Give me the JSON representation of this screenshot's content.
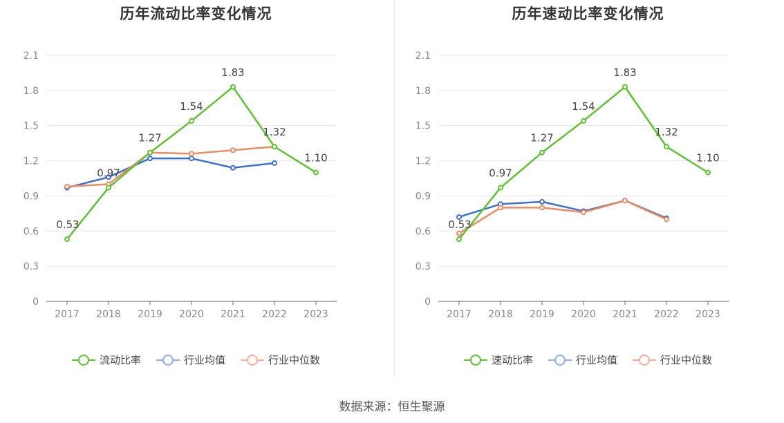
{
  "source": "数据来源：恒生聚源",
  "chart_data": [
    {
      "type": "line",
      "title": "历年流动比率变化情况",
      "categories": [
        "2017",
        "2018",
        "2019",
        "2020",
        "2021",
        "2022",
        "2023"
      ],
      "ylim": [
        0,
        2.1
      ],
      "yticks": [
        "0",
        "0.3",
        "0.6",
        "0.9",
        "1.2",
        "1.5",
        "1.8",
        "2.1"
      ],
      "grid": true,
      "legend_position": "bottom",
      "series": [
        {
          "name": "流动比率",
          "color": "#5bc42d",
          "values": [
            0.53,
            0.97,
            1.27,
            1.54,
            1.83,
            1.32,
            1.1
          ],
          "labels": [
            "0.53",
            "0.97",
            "1.27",
            "1.54",
            "1.83",
            "1.32",
            "1.10"
          ]
        },
        {
          "name": "行业均值",
          "color": "#3b6fd8",
          "legend_color": "#8eaeea",
          "values": [
            0.97,
            1.06,
            1.22,
            1.22,
            1.14,
            1.18,
            null
          ]
        },
        {
          "name": "行业中位数",
          "color": "#ee8a5b",
          "legend_color": "#f3b093",
          "values": [
            0.98,
            1.0,
            1.27,
            1.26,
            1.29,
            1.32,
            null
          ]
        }
      ]
    },
    {
      "type": "line",
      "title": "历年速动比率变化情况",
      "categories": [
        "2017",
        "2018",
        "2019",
        "2020",
        "2021",
        "2022",
        "2023"
      ],
      "ylim": [
        0,
        2.1
      ],
      "yticks": [
        "0",
        "0.3",
        "0.6",
        "0.9",
        "1.2",
        "1.5",
        "1.8",
        "2.1"
      ],
      "grid": true,
      "legend_position": "bottom",
      "series": [
        {
          "name": "速动比率",
          "color": "#5bc42d",
          "values": [
            0.53,
            0.97,
            1.27,
            1.54,
            1.83,
            1.32,
            1.1
          ],
          "labels": [
            "0.53",
            "0.97",
            "1.27",
            "1.54",
            "1.83",
            "1.32",
            "1.10"
          ]
        },
        {
          "name": "行业均值",
          "color": "#3b6fd8",
          "legend_color": "#8eaeea",
          "values": [
            0.72,
            0.83,
            0.85,
            0.77,
            0.86,
            0.71,
            null
          ]
        },
        {
          "name": "行业中位数",
          "color": "#ee8a5b",
          "legend_color": "#f3b093",
          "values": [
            0.58,
            0.8,
            0.8,
            0.76,
            0.86,
            0.7,
            null
          ]
        }
      ]
    }
  ]
}
